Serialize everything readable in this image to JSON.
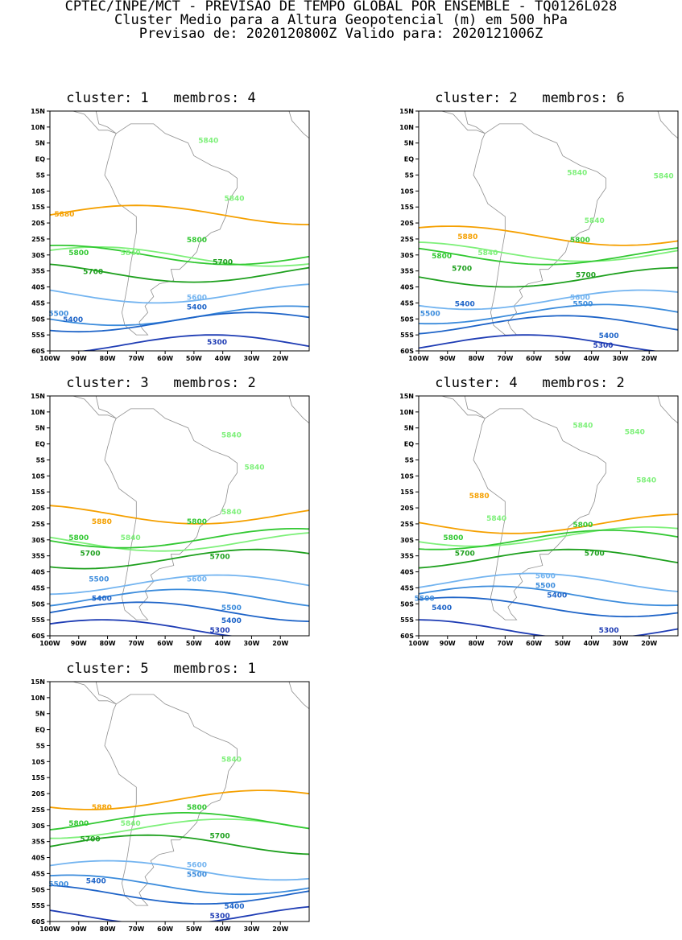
{
  "header": {
    "line1": "CPTEC/INPE/MCT - PREVISAO DE TEMPO GLOBAL POR ENSEMBLE - TQ0126L028",
    "line2": "Cluster Medio para a Altura Geopotencial (m) em 500 hPa",
    "line3": "Previsao de: 2020120800Z   Valido para: 2020121006Z"
  },
  "axes": {
    "lat_labels": [
      "15N",
      "10N",
      "5N",
      "EQ",
      "5S",
      "10S",
      "15S",
      "20S",
      "25S",
      "30S",
      "35S",
      "40S",
      "45S",
      "50S",
      "55S",
      "60S"
    ],
    "lon_labels": [
      "100W",
      "90W",
      "80W",
      "70W",
      "60W",
      "50W",
      "40W",
      "30W",
      "20W"
    ],
    "lat_range": [
      -60,
      15
    ],
    "lon_range": [
      -100,
      -10
    ]
  },
  "colors": {
    "c5880": "#f5a000",
    "c5840": "#7ef07a",
    "c5800": "#32c832",
    "c5700": "#1ea01e",
    "c5600": "#73b4f0",
    "c5500": "#3c8cdc",
    "c5400": "#1e64c8",
    "c5300": "#1e3cb4",
    "c5200": "#6428a0",
    "coast": "#909090"
  },
  "clusters": [
    {
      "title": "cluster: 1   membros: 4",
      "contours": [
        {
          "value": 5880,
          "label": "5880",
          "lat": -17.5
        },
        {
          "value": 5840,
          "label": "5840",
          "lat": -30.5
        },
        {
          "value": 5800,
          "label": "5800",
          "lat": -30.0
        },
        {
          "value": 5700,
          "label": "5700",
          "lat": -35.5
        },
        {
          "value": 5600,
          "label": "5600",
          "lat": -42.0
        },
        {
          "value": 5500,
          "label": "5500",
          "lat": -49.0
        },
        {
          "value": 5400,
          "label": "5400",
          "lat": -51.0
        },
        {
          "value": 5300,
          "label": "5300",
          "lat": -58.0
        }
      ],
      "labels": [
        {
          "text": "5880",
          "lon": -95,
          "lat": -18
        },
        {
          "text": "5840",
          "lon": -45,
          "lat": 5
        },
        {
          "text": "5840",
          "lon": -36,
          "lat": -13
        },
        {
          "text": "5840",
          "lon": -72,
          "lat": -30
        },
        {
          "text": "5800",
          "lon": -90,
          "lat": -30
        },
        {
          "text": "5800",
          "lon": -49,
          "lat": -26
        },
        {
          "text": "5700",
          "lon": -85,
          "lat": -36
        },
        {
          "text": "5700",
          "lon": -40,
          "lat": -33
        },
        {
          "text": "5600",
          "lon": -49,
          "lat": -44
        },
        {
          "text": "5500",
          "lon": -97,
          "lat": -49
        },
        {
          "text": "5400",
          "lon": -92,
          "lat": -51
        },
        {
          "text": "5400",
          "lon": -49,
          "lat": -47
        },
        {
          "text": "5300",
          "lon": -42,
          "lat": -58
        }
      ]
    },
    {
      "title": "cluster: 2   membros: 6",
      "contours": [
        {
          "value": 5880,
          "label": "5880",
          "lat": -24.0
        },
        {
          "value": 5840,
          "label": "5840",
          "lat": -29.0
        },
        {
          "value": 5800,
          "label": "5800",
          "lat": -30.0
        },
        {
          "value": 5700,
          "label": "5700",
          "lat": -37.0
        },
        {
          "value": 5600,
          "label": "5600",
          "lat": -44.0
        },
        {
          "value": 5500,
          "label": "5500",
          "lat": -48.5
        },
        {
          "value": 5400,
          "label": "5400",
          "lat": -52.0
        },
        {
          "value": 5300,
          "label": "5300",
          "lat": -58.0
        }
      ],
      "labels": [
        {
          "text": "5880",
          "lon": -83,
          "lat": -25
        },
        {
          "text": "5840",
          "lon": -39,
          "lat": -20
        },
        {
          "text": "5840",
          "lon": -15,
          "lat": -6
        },
        {
          "text": "5840",
          "lon": -76,
          "lat": -30
        },
        {
          "text": "5840",
          "lon": -45,
          "lat": -5
        },
        {
          "text": "5800",
          "lon": -92,
          "lat": -31
        },
        {
          "text": "5800",
          "lon": -44,
          "lat": -26
        },
        {
          "text": "5700",
          "lon": -85,
          "lat": -35
        },
        {
          "text": "5700",
          "lon": -42,
          "lat": -37
        },
        {
          "text": "5600",
          "lon": -44,
          "lat": -44
        },
        {
          "text": "5500",
          "lon": -96,
          "lat": -49
        },
        {
          "text": "5500",
          "lon": -43,
          "lat": -46
        },
        {
          "text": "5400",
          "lon": -84,
          "lat": -46
        },
        {
          "text": "5400",
          "lon": -34,
          "lat": -56
        },
        {
          "text": "5300",
          "lon": -36,
          "lat": -59
        }
      ]
    },
    {
      "title": "cluster: 3   membros: 2",
      "contours": [
        {
          "value": 5880,
          "label": "5880",
          "lat": -22.0
        },
        {
          "value": 5840,
          "label": "5840",
          "lat": -30.5
        },
        {
          "value": 5800,
          "label": "5800",
          "lat": -29.5
        },
        {
          "value": 5700,
          "label": "5700",
          "lat": -36.0
        },
        {
          "value": 5600,
          "label": "5600",
          "lat": -44.0
        },
        {
          "value": 5500,
          "label": "5500",
          "lat": -48.5
        },
        {
          "value": 5400,
          "label": "5400",
          "lat": -52.5
        },
        {
          "value": 5300,
          "label": "5300",
          "lat": -58.0
        }
      ],
      "labels": [
        {
          "text": "5880",
          "lon": -82,
          "lat": -25
        },
        {
          "text": "5840",
          "lon": -37,
          "lat": 2
        },
        {
          "text": "5840",
          "lon": -29,
          "lat": -8
        },
        {
          "text": "5840",
          "lon": -37,
          "lat": -22
        },
        {
          "text": "5840",
          "lon": -72,
          "lat": -30
        },
        {
          "text": "5800",
          "lon": -90,
          "lat": -30
        },
        {
          "text": "5800",
          "lon": -49,
          "lat": -25
        },
        {
          "text": "5700",
          "lon": -86,
          "lat": -35
        },
        {
          "text": "5700",
          "lon": -41,
          "lat": -36
        },
        {
          "text": "5600",
          "lon": -49,
          "lat": -43
        },
        {
          "text": "5500",
          "lon": -83,
          "lat": -43
        },
        {
          "text": "5500",
          "lon": -37,
          "lat": -52
        },
        {
          "text": "5400",
          "lon": -82,
          "lat": -49
        },
        {
          "text": "5400",
          "lon": -37,
          "lat": -56
        },
        {
          "text": "5300",
          "lon": -41,
          "lat": -59
        }
      ]
    },
    {
      "title": "cluster: 4   membros: 2",
      "contours": [
        {
          "value": 5880,
          "label": "5880",
          "lat": -25.0
        },
        {
          "value": 5840,
          "label": "5840",
          "lat": -29.0
        },
        {
          "value": 5800,
          "label": "5800",
          "lat": -30.0
        },
        {
          "value": 5700,
          "label": "5700",
          "lat": -36.0
        },
        {
          "value": 5600,
          "label": "5600",
          "lat": -43.5
        },
        {
          "value": 5500,
          "label": "5500",
          "lat": -47.5
        },
        {
          "value": 5400,
          "label": "5400",
          "lat": -51.0
        },
        {
          "value": 5300,
          "label": "5300",
          "lat": -58.0
        }
      ],
      "labels": [
        {
          "text": "5880",
          "lon": -79,
          "lat": -17
        },
        {
          "text": "5840",
          "lon": -43,
          "lat": 5
        },
        {
          "text": "5840",
          "lon": -25,
          "lat": 3
        },
        {
          "text": "5840",
          "lon": -21,
          "lat": -12
        },
        {
          "text": "5840",
          "lon": -73,
          "lat": -24
        },
        {
          "text": "5800",
          "lon": -43,
          "lat": -26
        },
        {
          "text": "5800",
          "lon": -88,
          "lat": -30
        },
        {
          "text": "5700",
          "lon": -84,
          "lat": -35
        },
        {
          "text": "5700",
          "lon": -39,
          "lat": -35
        },
        {
          "text": "5600",
          "lon": -56,
          "lat": -42
        },
        {
          "text": "5500",
          "lon": -56,
          "lat": -45
        },
        {
          "text": "5500",
          "lon": -98,
          "lat": -49
        },
        {
          "text": "5400",
          "lon": -92,
          "lat": -52
        },
        {
          "text": "5400",
          "lon": -52,
          "lat": -48
        },
        {
          "text": "5300",
          "lon": -34,
          "lat": -59
        }
      ]
    },
    {
      "title": "cluster: 5   membros: 1",
      "contours": [
        {
          "value": 5880,
          "label": "5880",
          "lat": -22.0
        },
        {
          "value": 5840,
          "label": "5840",
          "lat": -31.0
        },
        {
          "value": 5800,
          "label": "5800",
          "lat": -29.0
        },
        {
          "value": 5700,
          "label": "5700",
          "lat": -36.0
        },
        {
          "value": 5600,
          "label": "5600",
          "lat": -44.0
        },
        {
          "value": 5500,
          "label": "5500",
          "lat": -48.5
        },
        {
          "value": 5400,
          "label": "5400",
          "lat": -51.5
        },
        {
          "value": 5300,
          "label": "5300",
          "lat": -58.0
        }
      ],
      "labels": [
        {
          "text": "5880",
          "lon": -82,
          "lat": -25
        },
        {
          "text": "5840",
          "lon": -37,
          "lat": -10
        },
        {
          "text": "5840",
          "lon": -72,
          "lat": -30
        },
        {
          "text": "5800",
          "lon": -90,
          "lat": -30
        },
        {
          "text": "5800",
          "lon": -49,
          "lat": -25
        },
        {
          "text": "5700",
          "lon": -86,
          "lat": -35
        },
        {
          "text": "5700",
          "lon": -41,
          "lat": -34
        },
        {
          "text": "5600",
          "lon": -49,
          "lat": -43
        },
        {
          "text": "5500",
          "lon": -49,
          "lat": -46
        },
        {
          "text": "5500",
          "lon": -97,
          "lat": -49
        },
        {
          "text": "5400",
          "lon": -84,
          "lat": -48
        },
        {
          "text": "5400",
          "lon": -36,
          "lat": -56
        },
        {
          "text": "5300",
          "lon": -41,
          "lat": -59
        }
      ]
    }
  ]
}
